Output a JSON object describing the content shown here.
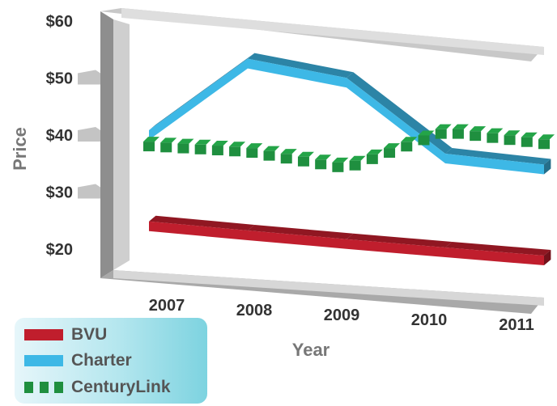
{
  "chart_data": {
    "type": "line",
    "title": "",
    "xlabel": "Year",
    "ylabel": "Price",
    "categories": [
      "2007",
      "2008",
      "2009",
      "2010",
      "2011"
    ],
    "ytick_labels": [
      "$60",
      "$50",
      "$40",
      "$30",
      "$20"
    ],
    "ylim": [
      20,
      60
    ],
    "grid": false,
    "legend_position": "bottom-left",
    "series": [
      {
        "name": "BVU",
        "color": "#c01e2d",
        "style": "solid",
        "values": [
          24,
          23,
          22,
          21,
          20
        ]
      },
      {
        "name": "Charter",
        "color": "#3db8e6",
        "style": "solid",
        "values": [
          40,
          54,
          52,
          39,
          38
        ]
      },
      {
        "name": "CenturyLink",
        "color": "#1f8f3f",
        "style": "dashed",
        "values": [
          38,
          38,
          36,
          44,
          43
        ]
      }
    ]
  }
}
